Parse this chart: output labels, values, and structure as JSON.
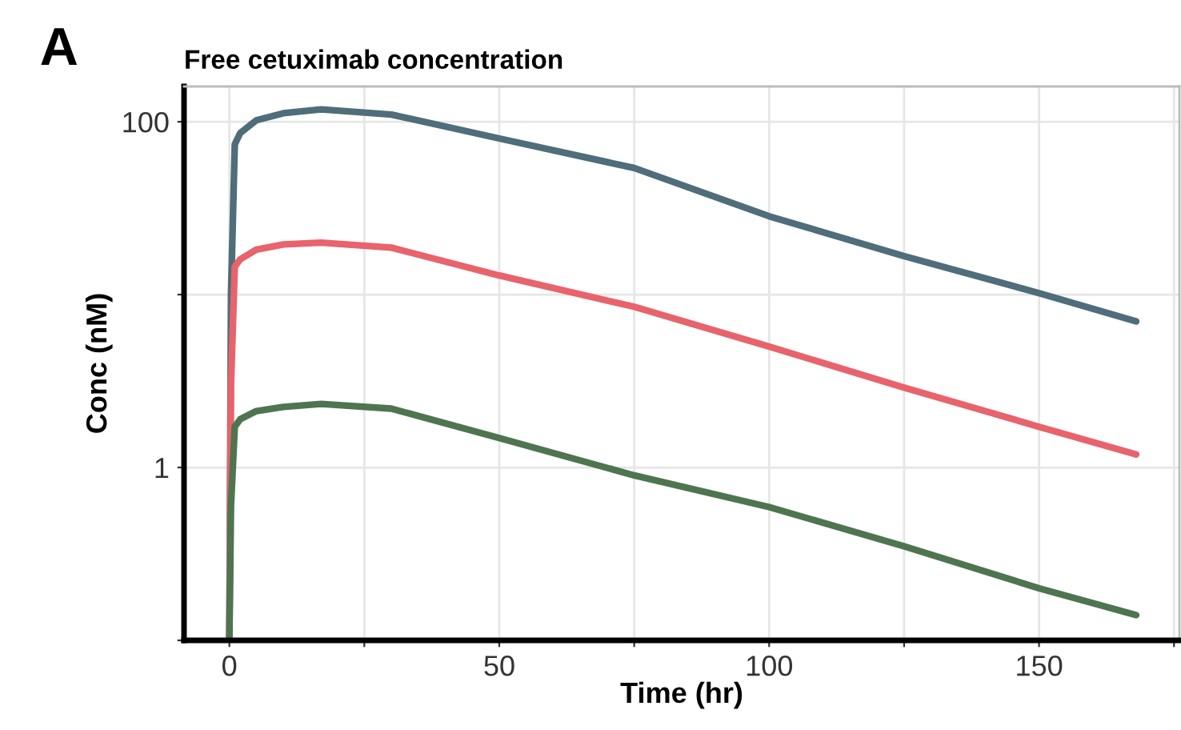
{
  "chart_data": {
    "type": "line",
    "title": "Free cetuximab concentration",
    "xlabel": "Time (hr)",
    "ylabel": "Conc (nM)",
    "annotations": [
      "A"
    ],
    "log": "y",
    "xlim": [
      -8.4,
      176
    ],
    "ylim": [
      0.1,
      160
    ],
    "xticks": [
      0,
      {
        "value": 25,
        "label": null
      },
      50,
      {
        "value": 75,
        "label": null
      },
      100,
      {
        "value": 125,
        "label": null
      },
      150,
      {
        "value": 175,
        "label": null
      }
    ],
    "yticks": [
      {
        "value": 0.1,
        "label": null
      },
      1,
      {
        "value": 10,
        "label": null
      },
      100
    ],
    "grid": true,
    "marker": "none",
    "line_style": "solid",
    "series": [
      {
        "color": "#4f6d7a",
        "x": [
          0,
          0.3,
          1,
          2,
          5,
          10,
          17,
          30,
          50,
          75,
          100,
          125,
          150,
          168
        ],
        "values": [
          0.1,
          10,
          74,
          86,
          102,
          112,
          118,
          110,
          80,
          54,
          28.4,
          16.7,
          10.2,
          7.0
        ]
      },
      {
        "color": "#e8636b",
        "x": [
          0,
          0.3,
          1,
          2,
          5,
          10,
          17,
          30,
          50,
          75,
          100,
          125,
          150,
          168
        ],
        "values": [
          0.1,
          3,
          14.5,
          16,
          18.2,
          19.5,
          20,
          18.7,
          12.9,
          8.5,
          5.0,
          2.9,
          1.72,
          1.19
        ]
      },
      {
        "color": "#4e7550",
        "x": [
          0,
          0.3,
          1,
          2,
          5,
          10,
          17,
          30,
          50,
          75,
          100,
          125,
          150,
          168
        ],
        "values": [
          0.1,
          0.6,
          1.72,
          1.9,
          2.12,
          2.24,
          2.33,
          2.19,
          1.48,
          0.9,
          0.59,
          0.35,
          0.2,
          0.14
        ]
      }
    ]
  }
}
